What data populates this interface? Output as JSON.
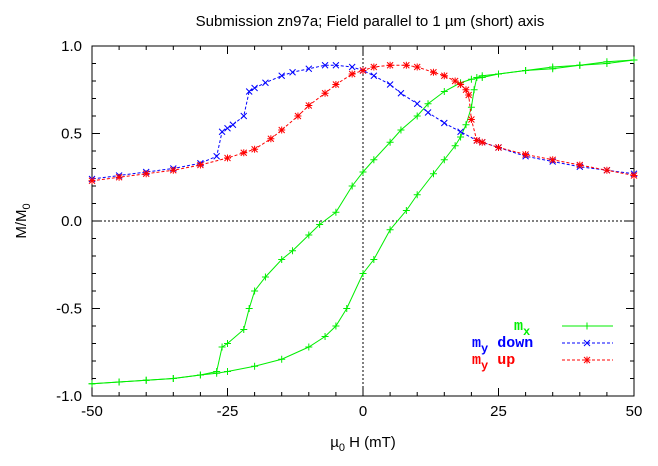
{
  "chart_data": {
    "type": "line",
    "title": "Submission zn97a; Field parallel to 1 µm (short) axis",
    "xlabel": "µ0 H (mT)",
    "ylabel": "M/M0",
    "xlim": [
      -50,
      50
    ],
    "ylim": [
      -1,
      1
    ],
    "xticks": [
      "-50",
      "-25",
      "0",
      "25",
      "50"
    ],
    "xtick_values": [
      -50,
      -25,
      0,
      25,
      50
    ],
    "yticks": [
      "-1.0",
      "-0.5",
      "0.0",
      "0.5",
      "1.0"
    ],
    "ytick_values": [
      -1,
      -0.5,
      0,
      0.5,
      1
    ],
    "legend_position": "bottom-right",
    "series": [
      {
        "name": "mx",
        "label_main": "m",
        "label_sub": "x",
        "label_rest": "",
        "color": "#00ee00",
        "marker": "+",
        "branches": [
          {
            "x": [
              -50,
              -45,
              -40,
              -35,
              -30,
              -27,
              -25,
              -20,
              -15,
              -10,
              -7,
              -5,
              -3,
              0,
              2,
              5,
              8,
              10,
              13,
              15,
              17,
              18,
              19,
              20,
              20.5,
              21,
              22,
              25,
              30,
              35,
              40,
              45,
              50
            ],
            "y": [
              -0.93,
              -0.92,
              -0.91,
              -0.9,
              -0.88,
              -0.87,
              -0.86,
              -0.83,
              -0.79,
              -0.72,
              -0.66,
              -0.6,
              -0.5,
              -0.3,
              -0.22,
              -0.05,
              0.06,
              0.15,
              0.27,
              0.35,
              0.43,
              0.48,
              0.55,
              0.65,
              0.75,
              0.82,
              0.83,
              0.84,
              0.86,
              0.87,
              0.89,
              0.9,
              0.92
            ]
          },
          {
            "x": [
              50,
              45,
              40,
              35,
              30,
              25,
              22,
              20,
              18,
              15,
              12,
              10,
              7,
              5,
              2,
              0,
              -2,
              -5,
              -8,
              -10,
              -13,
              -15,
              -18,
              -20,
              -21,
              -22,
              -25,
              -26,
              -27,
              -30,
              -35,
              -40,
              -45,
              -50
            ],
            "y": [
              0.92,
              0.91,
              0.89,
              0.88,
              0.86,
              0.84,
              0.82,
              0.81,
              0.79,
              0.74,
              0.67,
              0.6,
              0.52,
              0.45,
              0.35,
              0.28,
              0.2,
              0.05,
              -0.02,
              -0.08,
              -0.17,
              -0.22,
              -0.32,
              -0.4,
              -0.5,
              -0.62,
              -0.7,
              -0.72,
              -0.86,
              -0.88,
              -0.9,
              -0.91,
              -0.92,
              -0.93
            ]
          }
        ]
      },
      {
        "name": "my down",
        "label_main": "m",
        "label_sub": "y",
        "label_rest": " down",
        "color": "#0000ff",
        "marker": "x",
        "branches": [
          {
            "x": [
              50,
              45,
              40,
              35,
              30,
              25,
              22,
              21,
              18,
              15,
              12,
              10,
              7,
              5,
              2,
              0,
              -2,
              -5,
              -7,
              -10,
              -13,
              -15,
              -18,
              -20,
              -21,
              -22,
              -24,
              -25,
              -26,
              -27,
              -30,
              -35,
              -40,
              -45,
              -50
            ],
            "y": [
              0.27,
              0.29,
              0.31,
              0.34,
              0.37,
              0.42,
              0.45,
              0.46,
              0.51,
              0.56,
              0.62,
              0.67,
              0.73,
              0.78,
              0.83,
              0.86,
              0.88,
              0.89,
              0.89,
              0.87,
              0.85,
              0.83,
              0.79,
              0.76,
              0.74,
              0.6,
              0.55,
              0.53,
              0.51,
              0.37,
              0.33,
              0.3,
              0.28,
              0.26,
              0.24
            ]
          }
        ]
      },
      {
        "name": "my up",
        "label_main": "m",
        "label_sub": "y",
        "label_rest": " up",
        "color": "#ff0000",
        "marker": "*",
        "branches": [
          {
            "x": [
              -50,
              -45,
              -40,
              -35,
              -30,
              -25,
              -22,
              -20,
              -17,
              -15,
              -12,
              -10,
              -7,
              -5,
              -2,
              0,
              2,
              5,
              8,
              10,
              13,
              15,
              17,
              18,
              19,
              19.5,
              20,
              21,
              22,
              25,
              30,
              35,
              40,
              45,
              50
            ],
            "y": [
              0.23,
              0.25,
              0.27,
              0.29,
              0.32,
              0.36,
              0.39,
              0.41,
              0.47,
              0.52,
              0.6,
              0.66,
              0.73,
              0.78,
              0.84,
              0.86,
              0.88,
              0.89,
              0.89,
              0.88,
              0.85,
              0.83,
              0.8,
              0.78,
              0.75,
              0.72,
              0.58,
              0.46,
              0.45,
              0.42,
              0.38,
              0.35,
              0.32,
              0.29,
              0.26
            ]
          }
        ]
      }
    ]
  }
}
